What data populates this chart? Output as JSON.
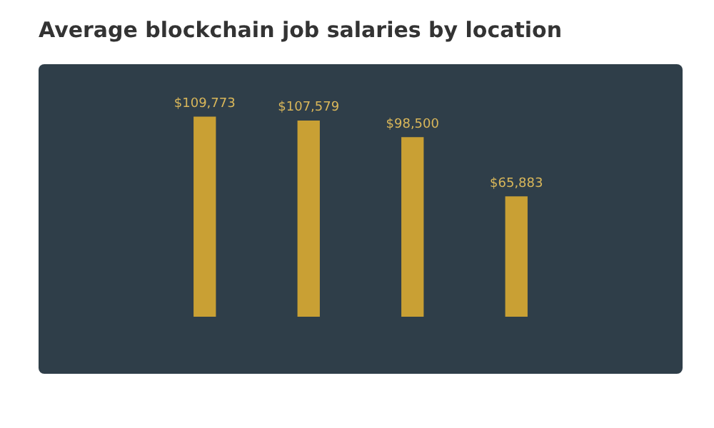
{
  "chart_data": {
    "type": "bar",
    "title": "Average blockchain job salaries by location",
    "categories": [
      null,
      null,
      null,
      null
    ],
    "values": [
      109773,
      107579,
      98500,
      65883
    ],
    "value_labels": [
      "$109,773",
      "$107,579",
      "$98,500",
      "$65,883"
    ],
    "color": "#c9a034",
    "tick_labels": false
  }
}
